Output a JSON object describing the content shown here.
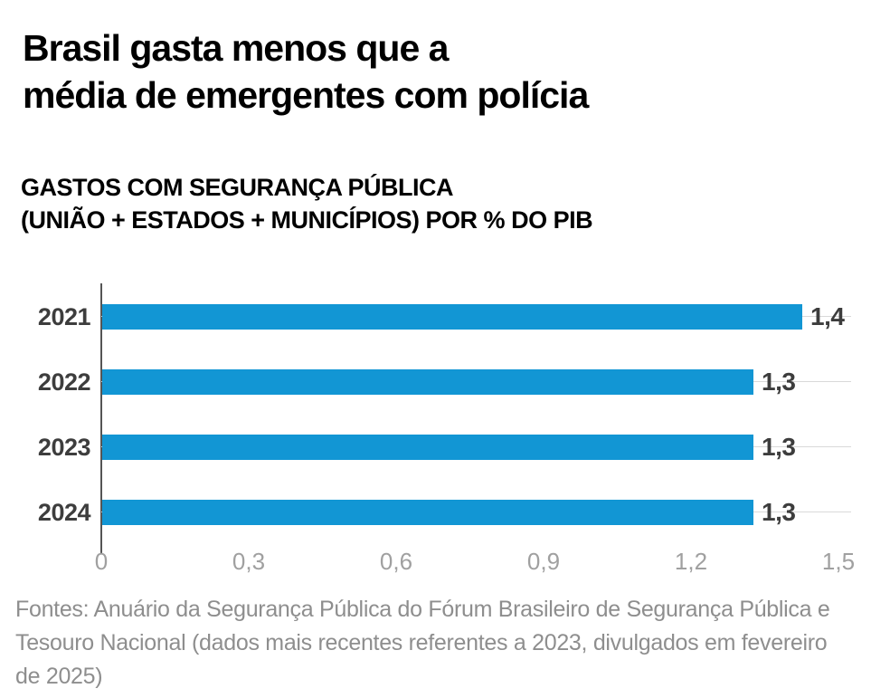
{
  "header": {
    "title_lines": [
      "Brasil gasta menos que a",
      "média de emergentes com polícia"
    ],
    "subtitle_lines": [
      "GASTOS COM SEGURANÇA PÚBLICA",
      "(UNIÃO + ESTADOS + MUNICÍPIOS) POR % DO PIB"
    ]
  },
  "chart_data": {
    "type": "bar",
    "orientation": "horizontal",
    "title": "GASTOS COM SEGURANÇA PÚBLICA (UNIÃO + ESTADOS + MUNICÍPIOS) POR % DO PIB",
    "categories": [
      "2021",
      "2022",
      "2023",
      "2024"
    ],
    "values": [
      1.4,
      1.3,
      1.3,
      1.3
    ],
    "value_labels": [
      "1,4",
      "1,3",
      "1,3",
      "1,3"
    ],
    "plotted_values": [
      1.425,
      1.325,
      1.325,
      1.325
    ],
    "x_axis": {
      "range": [
        0,
        1.5
      ],
      "ticks": [
        0,
        0.3,
        0.6,
        0.9,
        1.2,
        1.5
      ],
      "tick_labels": [
        "0",
        "0,3",
        "0,6",
        "0,9",
        "1,2",
        "1,5"
      ]
    },
    "ylabel": "",
    "xlabel": "",
    "legend": "none",
    "grid": "horizontal row gridlines only"
  },
  "footer": {
    "lines": [
      "Fontes: Anuário da Segurança Pública do Fórum Brasileiro de Segurança Pública e",
      "Tesouro Nacional (dados mais recentes referentes a 2023, divulgados em fevereiro",
      "de 2025)"
    ]
  },
  "colors": {
    "bar": "#1296d4",
    "title": "#000000",
    "label": "#3d3d3d",
    "axis": "#555555",
    "grid": "#d9d9d9",
    "tick": "#a0a0a0",
    "footer": "#8e8e8e"
  }
}
